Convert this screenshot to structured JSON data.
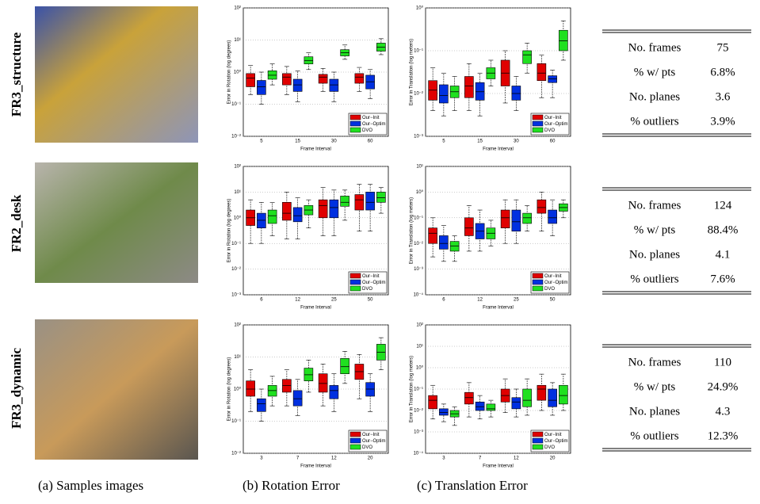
{
  "rows": [
    {
      "label": "FR3_structure",
      "table": [
        [
          "No. frames",
          "75"
        ],
        [
          "% w/ pts",
          "6.8%"
        ],
        [
          "No. planes",
          "3.6"
        ],
        [
          "% outliers",
          "3.9%"
        ]
      ]
    },
    {
      "label": "FR2_desk",
      "table": [
        [
          "No. frames",
          "124"
        ],
        [
          "% w/ pts",
          "88.4%"
        ],
        [
          "No. planes",
          "4.1"
        ],
        [
          "% outliers",
          "7.6%"
        ]
      ]
    },
    {
      "label": "FR3_dynamic",
      "table": [
        [
          "No. frames",
          "110"
        ],
        [
          "% w/ pts",
          "24.9%"
        ],
        [
          "No. planes",
          "4.3"
        ],
        [
          "% outliers",
          "12.3%"
        ]
      ]
    }
  ],
  "captions": [
    "(a) Samples images",
    "(b) Rotation Error",
    "(c) Translation Error"
  ],
  "chart_data": [
    {
      "type": "box",
      "ylabel": "Error in Rotation (log degrees)",
      "xlabel": "Frame Interval",
      "log": true,
      "legend": "lower right",
      "categories": [
        "5",
        "15",
        "30",
        "60"
      ],
      "ylim": [
        0.01,
        100
      ],
      "yticks": [
        {
          "value": 0.01,
          "label": "10⁻²"
        },
        {
          "value": 0.1,
          "label": "10⁻¹"
        },
        {
          "value": 1,
          "label": "10⁰"
        },
        {
          "value": 10,
          "label": "10¹"
        },
        {
          "value": 100,
          "label": "10²"
        }
      ],
      "series": [
        {
          "name": "Our−Init",
          "color": "#e00000",
          "boxes": [
            [
              0.2,
              0.35,
              0.65,
              0.9,
              1.6
            ],
            [
              0.2,
              0.4,
              0.7,
              0.9,
              1.5
            ],
            [
              0.25,
              0.45,
              0.7,
              0.85,
              1.3
            ],
            [
              0.25,
              0.45,
              0.7,
              0.9,
              1.4
            ]
          ]
        },
        {
          "name": "Our−Optim",
          "color": "#0030e0",
          "boxes": [
            [
              0.1,
              0.2,
              0.35,
              0.55,
              1.0
            ],
            [
              0.12,
              0.25,
              0.4,
              0.6,
              1.1
            ],
            [
              0.12,
              0.25,
              0.4,
              0.6,
              1.0
            ],
            [
              0.15,
              0.3,
              0.5,
              0.8,
              1.2
            ]
          ]
        },
        {
          "name": "DVO",
          "color": "#20e020",
          "boxes": [
            [
              0.4,
              0.6,
              0.8,
              1.1,
              1.8
            ],
            [
              1.2,
              1.8,
              2.3,
              3,
              4
            ],
            [
              2.5,
              3.2,
              4,
              5,
              7
            ],
            [
              3.5,
              4.5,
              6,
              8,
              11
            ]
          ]
        }
      ]
    },
    {
      "type": "box",
      "ylabel": "Error in Translation (log meters)",
      "xlabel": "Frame Interval",
      "log": true,
      "legend": "lower right",
      "categories": [
        "5",
        "15",
        "30",
        "60"
      ],
      "ylim": [
        0.001,
        1
      ],
      "yticks": [
        {
          "value": 0.001,
          "label": "10⁻³"
        },
        {
          "value": 0.01,
          "label": "10⁻²"
        },
        {
          "value": 0.1,
          "label": "10⁻¹"
        },
        {
          "value": 1,
          "label": "10⁰"
        }
      ],
      "series": [
        {
          "name": "Our−Init",
          "color": "#e00000",
          "boxes": [
            [
              0.004,
              0.007,
              0.012,
              0.02,
              0.04
            ],
            [
              0.004,
              0.008,
              0.015,
              0.025,
              0.05
            ],
            [
              0.006,
              0.015,
              0.03,
              0.06,
              0.1
            ],
            [
              0.008,
              0.02,
              0.03,
              0.05,
              0.08
            ]
          ]
        },
        {
          "name": "Our−Optim",
          "color": "#0030e0",
          "boxes": [
            [
              0.003,
              0.006,
              0.009,
              0.016,
              0.03
            ],
            [
              0.003,
              0.007,
              0.011,
              0.018,
              0.03
            ],
            [
              0.004,
              0.007,
              0.01,
              0.015,
              0.025
            ],
            [
              0.008,
              0.018,
              0.022,
              0.026,
              0.035
            ]
          ]
        },
        {
          "name": "DVO",
          "color": "#20e020",
          "boxes": [
            [
              0.004,
              0.008,
              0.011,
              0.015,
              0.025
            ],
            [
              0.015,
              0.022,
              0.03,
              0.04,
              0.06
            ],
            [
              0.03,
              0.05,
              0.08,
              0.1,
              0.15
            ],
            [
              0.06,
              0.1,
              0.17,
              0.3,
              0.5
            ]
          ]
        }
      ]
    },
    {
      "type": "box",
      "ylabel": "Error in Rotation (log degrees)",
      "xlabel": "Frame Interval",
      "log": true,
      "legend": "lower right",
      "categories": [
        "6",
        "12",
        "25",
        "50"
      ],
      "ylim": [
        0.001,
        100
      ],
      "yticks": [
        {
          "value": 0.001,
          "label": "10⁻³"
        },
        {
          "value": 0.01,
          "label": "10⁻²"
        },
        {
          "value": 0.1,
          "label": "10⁻¹"
        },
        {
          "value": 1,
          "label": "10⁰"
        },
        {
          "value": 10,
          "label": "10¹"
        },
        {
          "value": 100,
          "label": "10²"
        }
      ],
      "series": [
        {
          "name": "Our−Init",
          "color": "#e00000",
          "boxes": [
            [
              0.1,
              0.5,
              1,
              2,
              5
            ],
            [
              0.15,
              0.8,
              1.5,
              4,
              10
            ],
            [
              0.2,
              1,
              3,
              5,
              15
            ],
            [
              0.3,
              2,
              5,
              8,
              20
            ]
          ]
        },
        {
          "name": "Our−Optim",
          "color": "#0030e0",
          "boxes": [
            [
              0.1,
              0.4,
              0.8,
              1.5,
              4
            ],
            [
              0.15,
              0.7,
              1.2,
              2.5,
              6
            ],
            [
              0.2,
              1,
              2.5,
              5,
              12
            ],
            [
              0.3,
              2,
              4,
              10,
              20
            ]
          ]
        },
        {
          "name": "DVO",
          "color": "#20e020",
          "boxes": [
            [
              0.2,
              0.6,
              1.2,
              2,
              4
            ],
            [
              0.4,
              1.3,
              2,
              3,
              5
            ],
            [
              0.8,
              2.8,
              4,
              7,
              12
            ],
            [
              1.5,
              4,
              6,
              10,
              15
            ]
          ]
        }
      ]
    },
    {
      "type": "box",
      "ylabel": "Error in Translation (log meters)",
      "xlabel": "Frame Interval",
      "log": true,
      "legend": "lower right",
      "categories": [
        "6",
        "12",
        "25",
        "50"
      ],
      "ylim": [
        0.0001,
        10
      ],
      "yticks": [
        {
          "value": 0.0001,
          "label": "10⁻⁴"
        },
        {
          "value": 0.001,
          "label": "10⁻³"
        },
        {
          "value": 0.01,
          "label": "10⁻²"
        },
        {
          "value": 0.1,
          "label": "10⁻¹"
        },
        {
          "value": 1,
          "label": "10⁰"
        },
        {
          "value": 10,
          "label": "10¹"
        }
      ],
      "series": [
        {
          "name": "Our−Init",
          "color": "#e00000",
          "boxes": [
            [
              0.003,
              0.01,
              0.025,
              0.04,
              0.1
            ],
            [
              0.005,
              0.02,
              0.04,
              0.1,
              0.3
            ],
            [
              0.01,
              0.04,
              0.1,
              0.2,
              0.5
            ],
            [
              0.03,
              0.15,
              0.25,
              0.5,
              1
            ]
          ]
        },
        {
          "name": "Our−Optim",
          "color": "#0030e0",
          "boxes": [
            [
              0.002,
              0.006,
              0.01,
              0.02,
              0.05
            ],
            [
              0.005,
              0.015,
              0.03,
              0.06,
              0.2
            ],
            [
              0.01,
              0.03,
              0.07,
              0.2,
              0.5
            ],
            [
              0.02,
              0.06,
              0.1,
              0.2,
              0.5
            ]
          ]
        },
        {
          "name": "DVO",
          "color": "#20e020",
          "boxes": [
            [
              0.002,
              0.005,
              0.008,
              0.012,
              0.02
            ],
            [
              0.008,
              0.015,
              0.025,
              0.04,
              0.08
            ],
            [
              0.03,
              0.06,
              0.1,
              0.15,
              0.3
            ],
            [
              0.1,
              0.18,
              0.25,
              0.35,
              0.5
            ]
          ]
        }
      ]
    },
    {
      "type": "box",
      "ylabel": "Error in Rotation (log degrees)",
      "xlabel": "Frame Interval",
      "log": true,
      "legend": "lower right",
      "categories": [
        "3",
        "7",
        "12",
        "20"
      ],
      "ylim": [
        0.01,
        100
      ],
      "yticks": [
        {
          "value": 0.01,
          "label": "10⁻²"
        },
        {
          "value": 0.1,
          "label": "10⁻¹"
        },
        {
          "value": 1,
          "label": "10⁰"
        },
        {
          "value": 10,
          "label": "10¹"
        },
        {
          "value": 100,
          "label": "10²"
        }
      ],
      "series": [
        {
          "name": "Our−Init",
          "color": "#e00000",
          "boxes": [
            [
              0.2,
              0.6,
              1,
              1.8,
              4
            ],
            [
              0.3,
              0.8,
              1.3,
              2,
              4
            ],
            [
              0.3,
              0.8,
              1.5,
              3,
              6
            ],
            [
              0.5,
              2,
              3.5,
              6,
              12
            ]
          ]
        },
        {
          "name": "Our−Optim",
          "color": "#0030e0",
          "boxes": [
            [
              0.1,
              0.2,
              0.35,
              0.5,
              1
            ],
            [
              0.15,
              0.3,
              0.5,
              0.9,
              2
            ],
            [
              0.2,
              0.5,
              0.9,
              1.3,
              3
            ],
            [
              0.2,
              0.6,
              1,
              1.6,
              3
            ]
          ]
        },
        {
          "name": "DVO",
          "color": "#20e020",
          "boxes": [
            [
              0.3,
              0.6,
              0.9,
              1.3,
              2.5
            ],
            [
              0.8,
              1.8,
              2.8,
              4.5,
              8
            ],
            [
              1.5,
              3,
              5,
              9,
              15
            ],
            [
              4,
              8,
              14,
              25,
              40
            ]
          ]
        }
      ]
    },
    {
      "type": "box",
      "ylabel": "Error in Translation (log meters)",
      "xlabel": "Frame Interval",
      "log": true,
      "legend": "lower right",
      "categories": [
        "3",
        "7",
        "12",
        "20"
      ],
      "ylim": [
        0.0001,
        100
      ],
      "yticks": [
        {
          "value": 0.0001,
          "label": "10⁻⁴"
        },
        {
          "value": 0.001,
          "label": "10⁻³"
        },
        {
          "value": 0.01,
          "label": "10⁻²"
        },
        {
          "value": 0.1,
          "label": "10⁻¹"
        },
        {
          "value": 1,
          "label": "10⁰"
        },
        {
          "value": 10,
          "label": "10¹"
        },
        {
          "value": 100,
          "label": "10²"
        }
      ],
      "series": [
        {
          "name": "Our−Init",
          "color": "#e00000",
          "boxes": [
            [
              0.004,
              0.012,
              0.03,
              0.05,
              0.15
            ],
            [
              0.005,
              0.02,
              0.04,
              0.07,
              0.2
            ],
            [
              0.008,
              0.025,
              0.05,
              0.1,
              0.3
            ],
            [
              0.01,
              0.03,
              0.1,
              0.15,
              0.5
            ]
          ]
        },
        {
          "name": "Our−Optim",
          "color": "#0030e0",
          "boxes": [
            [
              0.003,
              0.006,
              0.008,
              0.012,
              0.02
            ],
            [
              0.004,
              0.01,
              0.015,
              0.025,
              0.05
            ],
            [
              0.005,
              0.012,
              0.025,
              0.04,
              0.1
            ],
            [
              0.006,
              0.015,
              0.03,
              0.1,
              0.2
            ]
          ]
        },
        {
          "name": "DVO",
          "color": "#20e020",
          "boxes": [
            [
              0.002,
              0.005,
              0.007,
              0.01,
              0.015
            ],
            [
              0.005,
              0.01,
              0.012,
              0.02,
              0.03
            ],
            [
              0.006,
              0.015,
              0.03,
              0.1,
              0.3
            ],
            [
              0.01,
              0.02,
              0.05,
              0.15,
              0.5
            ]
          ]
        }
      ]
    }
  ]
}
